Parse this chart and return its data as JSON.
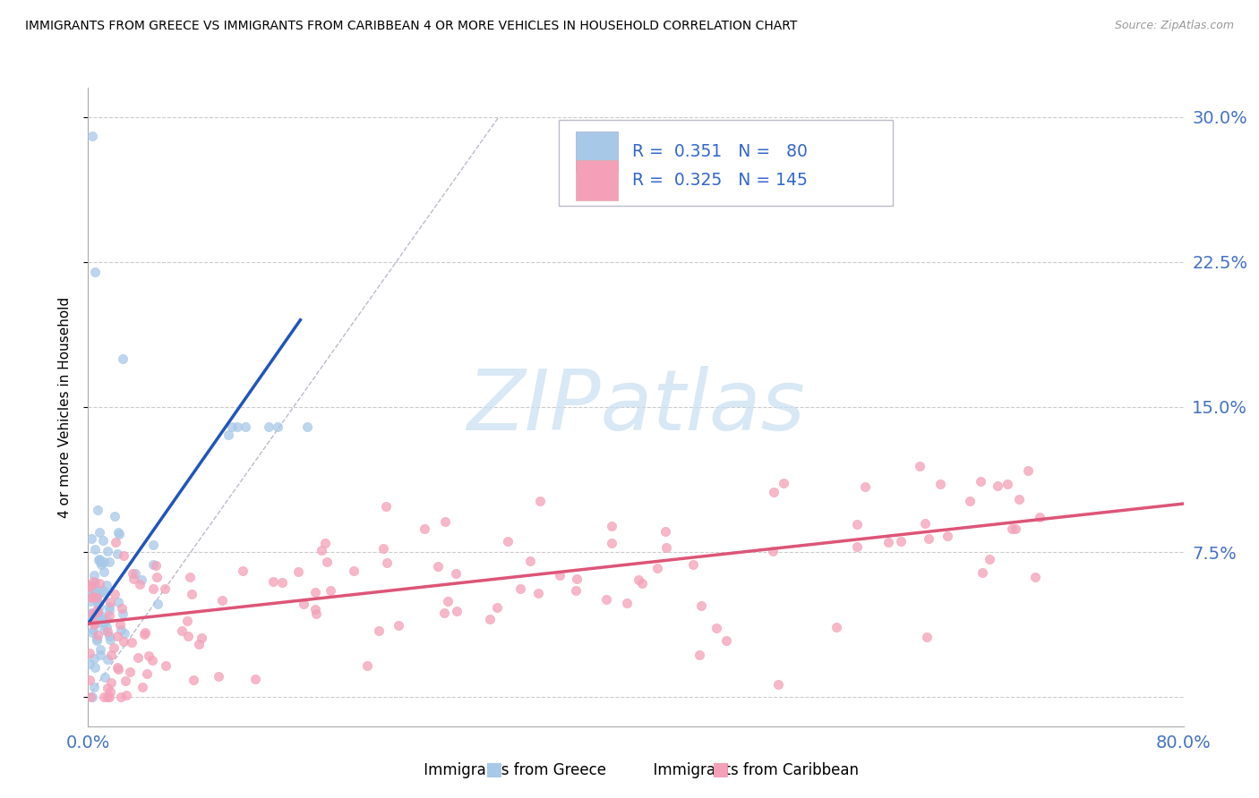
{
  "title": "IMMIGRANTS FROM GREECE VS IMMIGRANTS FROM CARIBBEAN 4 OR MORE VEHICLES IN HOUSEHOLD CORRELATION CHART",
  "source": "Source: ZipAtlas.com",
  "ylabel": "4 or more Vehicles in Household",
  "yticks": [
    0.0,
    0.075,
    0.15,
    0.225,
    0.3
  ],
  "ytick_labels": [
    "",
    "7.5%",
    "15.0%",
    "22.5%",
    "30.0%"
  ],
  "xlim": [
    0.0,
    0.8
  ],
  "ylim": [
    -0.015,
    0.315
  ],
  "greece_color": "#a8c8e8",
  "caribbean_color": "#f4a0b8",
  "greece_line_color": "#2255bb",
  "caribbean_line_color": "#dd5577",
  "diag_color": "#bbbbcc",
  "watermark_color": "#c8dff0",
  "greece_R": 0.351,
  "greece_N": 80,
  "caribbean_R": 0.325,
  "caribbean_N": 145,
  "greece_line_x": [
    0.0,
    0.155
  ],
  "greece_line_y": [
    0.038,
    0.195
  ],
  "caribbean_line_x": [
    0.0,
    0.8
  ],
  "caribbean_line_y": [
    0.038,
    0.1
  ],
  "diag_line_x": [
    0.0,
    0.3
  ],
  "diag_line_y": [
    0.0,
    0.3
  ]
}
